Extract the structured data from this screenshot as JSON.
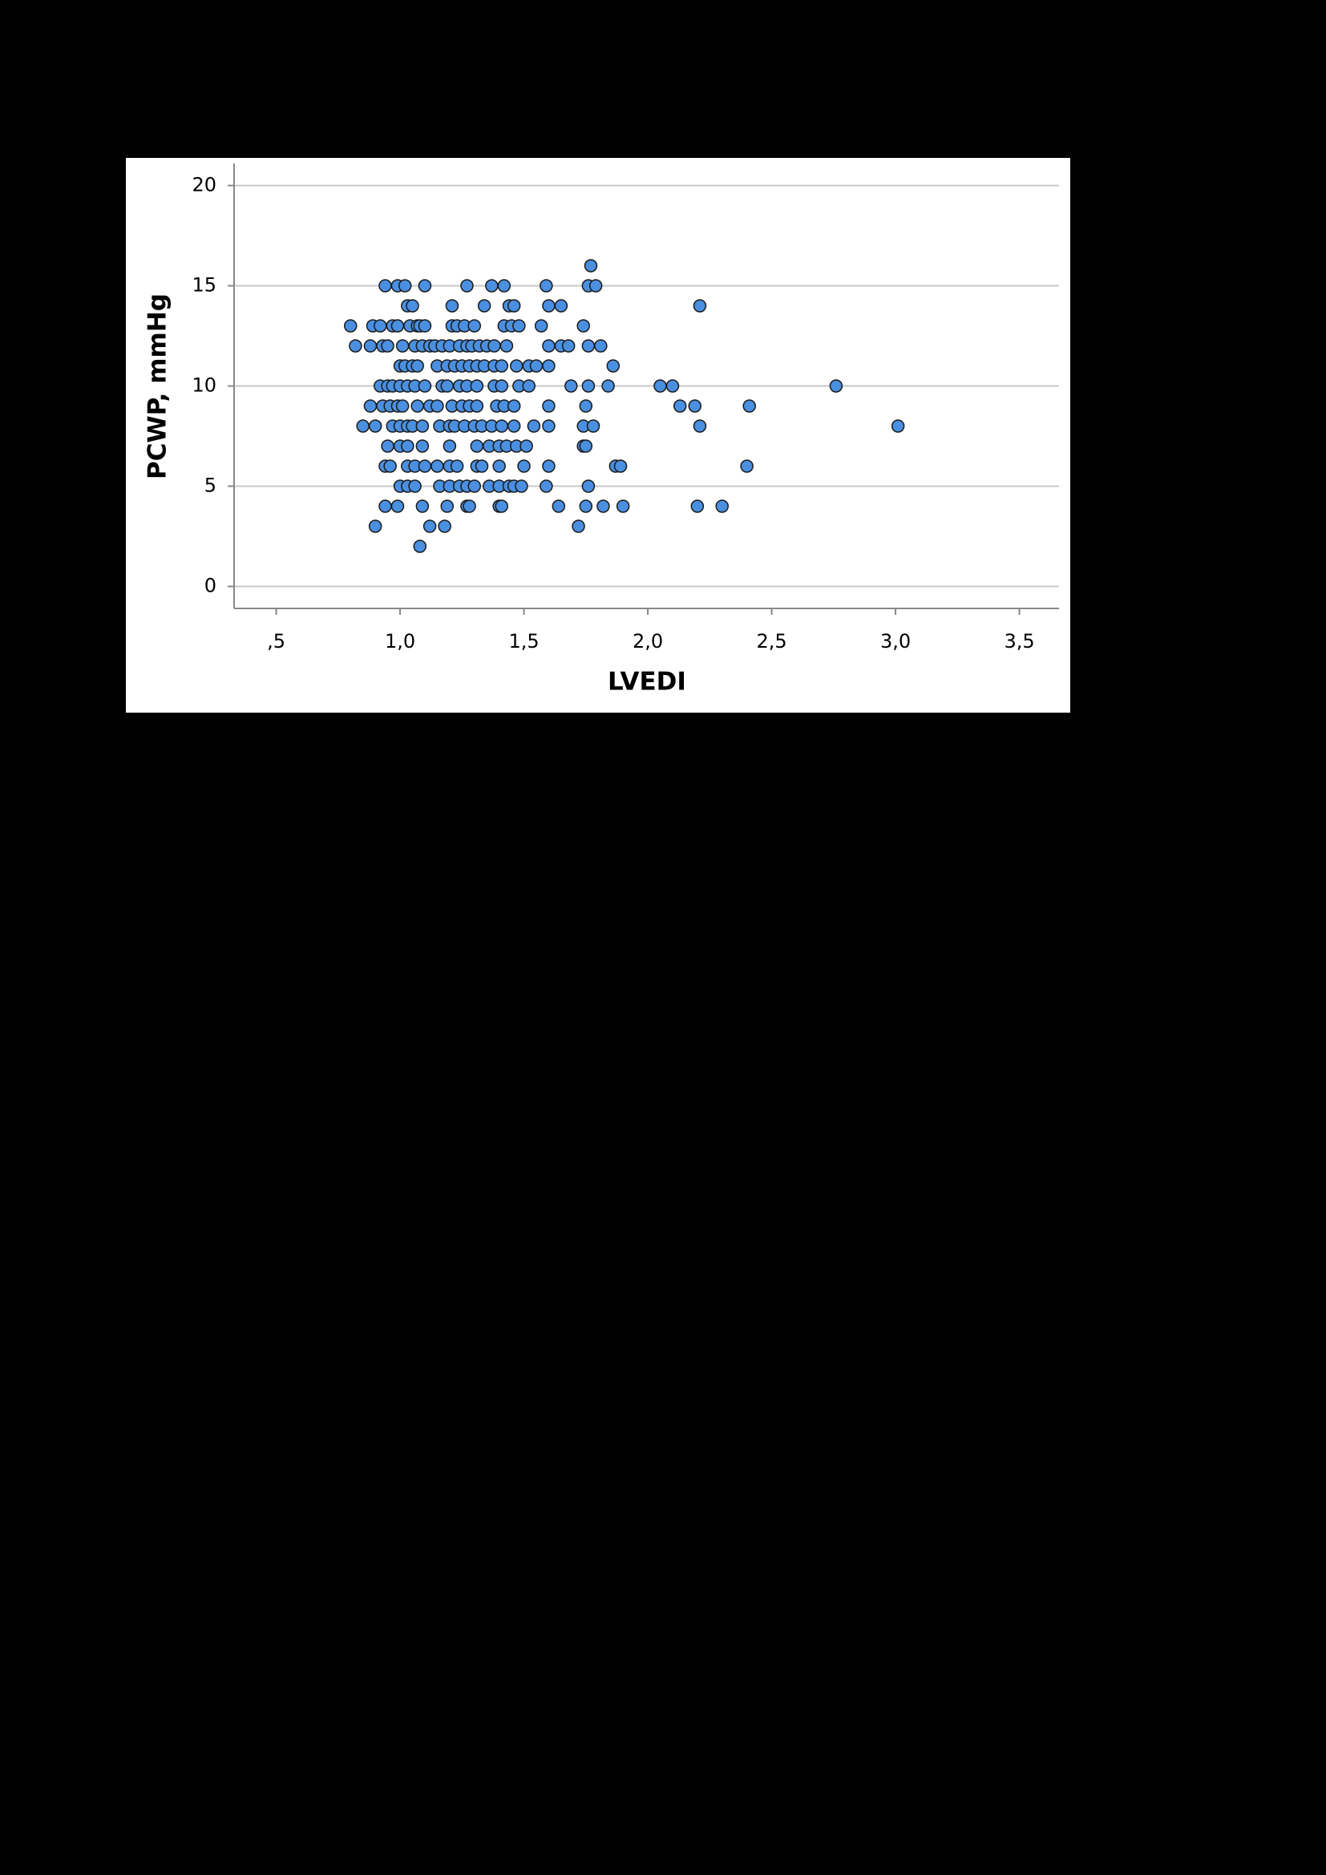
{
  "chart_data": {
    "type": "scatter",
    "x_label": "LVEDI",
    "y_label": "PCWP, mmHg",
    "color": "#4a8fe0",
    "grid": true,
    "xlim": [
      0.33,
      3.66
    ],
    "ylim": [
      -1.1,
      21.1
    ],
    "xticks": [
      {
        "value": 0.5,
        "label": ",5"
      },
      {
        "value": 1.0,
        "label": "1,0"
      },
      {
        "value": 1.5,
        "label": "1,5"
      },
      {
        "value": 2.0,
        "label": "2,0"
      },
      {
        "value": 2.5,
        "label": "2,5"
      },
      {
        "value": 3.0,
        "label": "3,0"
      },
      {
        "value": 3.5,
        "label": "3,5"
      }
    ],
    "yticks": [
      0,
      5,
      10,
      15,
      20
    ],
    "x": [
      1.77,
      0.94,
      0.99,
      1.02,
      1.1,
      1.27,
      1.37,
      1.42,
      1.59,
      1.76,
      1.79,
      1.03,
      1.05,
      1.21,
      1.34,
      1.44,
      1.46,
      1.6,
      1.65,
      2.21,
      0.8,
      0.89,
      0.92,
      0.97,
      0.99,
      1.04,
      1.07,
      1.08,
      1.1,
      1.21,
      1.23,
      1.26,
      1.3,
      1.42,
      1.45,
      1.48,
      1.57,
      1.74,
      0.82,
      0.88,
      0.93,
      0.95,
      1.01,
      1.06,
      1.09,
      1.12,
      1.14,
      1.17,
      1.2,
      1.24,
      1.27,
      1.29,
      1.32,
      1.35,
      1.38,
      1.43,
      1.6,
      1.65,
      1.68,
      1.76,
      1.81,
      1.0,
      1.02,
      1.05,
      1.07,
      1.15,
      1.19,
      1.22,
      1.25,
      1.28,
      1.31,
      1.34,
      1.38,
      1.41,
      1.47,
      1.52,
      1.55,
      1.6,
      1.86,
      0.92,
      0.95,
      0.97,
      1.0,
      1.03,
      1.06,
      1.1,
      1.17,
      1.19,
      1.24,
      1.27,
      1.31,
      1.38,
      1.41,
      1.48,
      1.52,
      1.69,
      1.76,
      1.84,
      2.05,
      2.1,
      2.76,
      0.88,
      0.93,
      0.96,
      0.99,
      1.01,
      1.07,
      1.12,
      1.15,
      1.21,
      1.25,
      1.28,
      1.31,
      1.39,
      1.42,
      1.46,
      1.6,
      1.75,
      2.13,
      2.19,
      2.41,
      0.85,
      0.9,
      0.97,
      1.0,
      1.03,
      1.05,
      1.09,
      1.16,
      1.2,
      1.22,
      1.26,
      1.3,
      1.33,
      1.37,
      1.41,
      1.46,
      1.54,
      1.6,
      1.74,
      1.78,
      2.21,
      3.01,
      0.95,
      1.0,
      1.03,
      1.09,
      1.2,
      1.31,
      1.36,
      1.4,
      1.43,
      1.47,
      1.51,
      1.74,
      1.75,
      0.94,
      0.96,
      1.03,
      1.06,
      1.1,
      1.15,
      1.2,
      1.23,
      1.31,
      1.33,
      1.4,
      1.5,
      1.6,
      1.87,
      1.89,
      2.4,
      1.0,
      1.03,
      1.06,
      1.16,
      1.2,
      1.24,
      1.27,
      1.3,
      1.36,
      1.4,
      1.44,
      1.46,
      1.49,
      1.59,
      1.76,
      0.94,
      0.99,
      1.09,
      1.19,
      1.27,
      1.28,
      1.4,
      1.41,
      1.64,
      1.75,
      1.82,
      1.9,
      2.2,
      2.3,
      0.9,
      1.12,
      1.18,
      1.72,
      1.08
    ],
    "values": [
      16,
      15,
      15,
      15,
      15,
      15,
      15,
      15,
      15,
      15,
      15,
      14,
      14,
      14,
      14,
      14,
      14,
      14,
      14,
      14,
      13,
      13,
      13,
      13,
      13,
      13,
      13,
      13,
      13,
      13,
      13,
      13,
      13,
      13,
      13,
      13,
      13,
      13,
      12,
      12,
      12,
      12,
      12,
      12,
      12,
      12,
      12,
      12,
      12,
      12,
      12,
      12,
      12,
      12,
      12,
      12,
      12,
      12,
      12,
      12,
      12,
      11,
      11,
      11,
      11,
      11,
      11,
      11,
      11,
      11,
      11,
      11,
      11,
      11,
      11,
      11,
      11,
      11,
      11,
      10,
      10,
      10,
      10,
      10,
      10,
      10,
      10,
      10,
      10,
      10,
      10,
      10,
      10,
      10,
      10,
      10,
      10,
      10,
      10,
      10,
      10,
      9,
      9,
      9,
      9,
      9,
      9,
      9,
      9,
      9,
      9,
      9,
      9,
      9,
      9,
      9,
      9,
      9,
      9,
      9,
      9,
      8,
      8,
      8,
      8,
      8,
      8,
      8,
      8,
      8,
      8,
      8,
      8,
      8,
      8,
      8,
      8,
      8,
      8,
      8,
      8,
      8,
      8,
      7,
      7,
      7,
      7,
      7,
      7,
      7,
      7,
      7,
      7,
      7,
      7,
      7,
      6,
      6,
      6,
      6,
      6,
      6,
      6,
      6,
      6,
      6,
      6,
      6,
      6,
      6,
      6,
      6,
      5,
      5,
      5,
      5,
      5,
      5,
      5,
      5,
      5,
      5,
      5,
      5,
      5,
      5,
      5,
      4,
      4,
      4,
      4,
      4,
      4,
      4,
      4,
      4,
      4,
      4,
      4,
      4,
      4,
      3,
      3,
      3,
      3,
      2
    ]
  }
}
